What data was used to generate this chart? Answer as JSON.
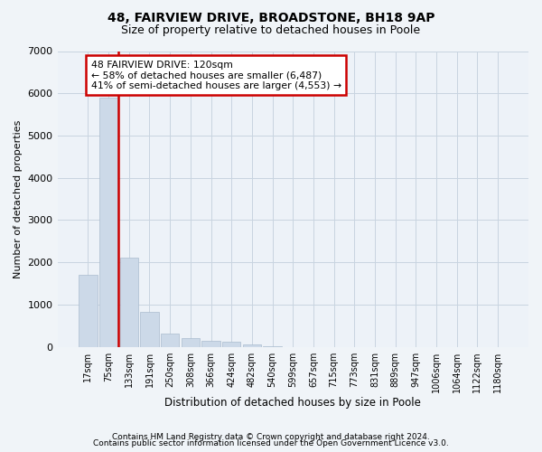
{
  "title1": "48, FAIRVIEW DRIVE, BROADSTONE, BH18 9AP",
  "title2": "Size of property relative to detached houses in Poole",
  "xlabel": "Distribution of detached houses by size in Poole",
  "ylabel": "Number of detached properties",
  "bar_color": "#ccd9e8",
  "bar_edge_color": "#aabcce",
  "grid_color": "#c8d4e0",
  "vline_color": "#cc0000",
  "annotation_box_edgecolor": "#cc0000",
  "annotation_text": "48 FAIRVIEW DRIVE: 120sqm\n← 58% of detached houses are smaller (6,487)\n41% of semi-detached houses are larger (4,553) →",
  "categories": [
    "17sqm",
    "75sqm",
    "133sqm",
    "191sqm",
    "250sqm",
    "308sqm",
    "366sqm",
    "424sqm",
    "482sqm",
    "540sqm",
    "599sqm",
    "657sqm",
    "715sqm",
    "773sqm",
    "831sqm",
    "889sqm",
    "947sqm",
    "1006sqm",
    "1064sqm",
    "1122sqm",
    "1180sqm"
  ],
  "values": [
    1700,
    5900,
    2100,
    820,
    310,
    195,
    140,
    120,
    65,
    15,
    0,
    0,
    0,
    0,
    0,
    0,
    0,
    0,
    0,
    0,
    0
  ],
  "ylim": [
    0,
    7000
  ],
  "yticks": [
    0,
    1000,
    2000,
    3000,
    4000,
    5000,
    6000,
    7000
  ],
  "footer1": "Contains HM Land Registry data © Crown copyright and database right 2024.",
  "footer2": "Contains public sector information licensed under the Open Government Licence v3.0.",
  "bg_color": "#f0f4f8",
  "plot_bg_color": "#edf2f8"
}
